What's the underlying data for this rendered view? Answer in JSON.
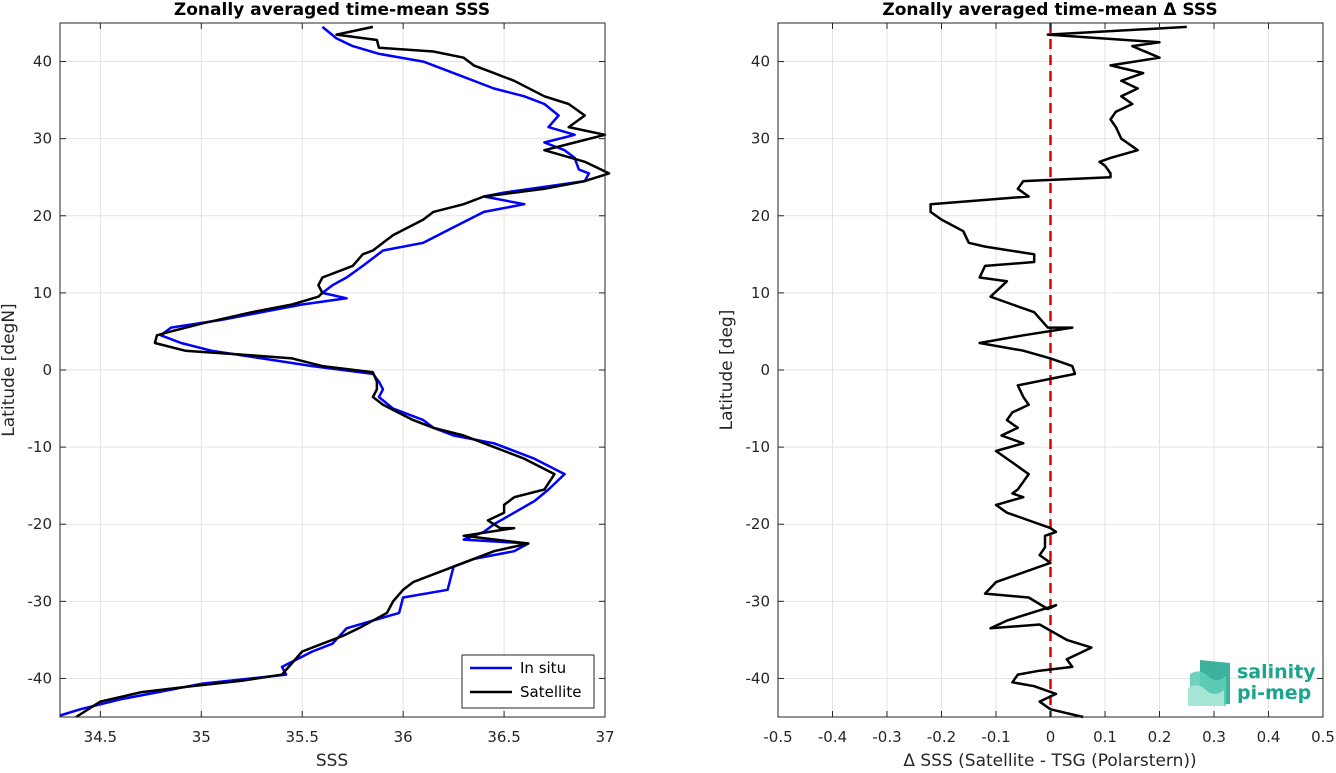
{
  "chart_data": [
    {
      "type": "line",
      "title": "Zonally averaged time-mean SSS",
      "xlabel": "SSS",
      "ylabel": "Latitude [degN]",
      "xlim": [
        34.3,
        37.0
      ],
      "ylim": [
        -45,
        45
      ],
      "xticks": [
        "34.5",
        "35",
        "35.5",
        "36",
        "36.5",
        "37"
      ],
      "xtick_values": [
        34.5,
        35,
        35.5,
        36,
        36.5,
        37
      ],
      "yticks": [
        "-40",
        "-30",
        "-20",
        "-10",
        "0",
        "10",
        "20",
        "30",
        "40"
      ],
      "ytick_values": [
        -40,
        -30,
        -20,
        -10,
        0,
        10,
        20,
        30,
        40
      ],
      "grid": true,
      "legend_position": "bottom-right",
      "series": [
        {
          "name": "In situ",
          "color": "#0000ff",
          "points": [
            [
              35.6,
              44.5
            ],
            [
              35.67,
              43.0
            ],
            [
              35.75,
              42.0
            ],
            [
              35.88,
              41.0
            ],
            [
              36.1,
              40.0
            ],
            [
              36.25,
              38.5
            ],
            [
              36.45,
              36.5
            ],
            [
              36.6,
              35.5
            ],
            [
              36.7,
              34.5
            ],
            [
              36.77,
              33.0
            ],
            [
              36.72,
              31.5
            ],
            [
              36.85,
              30.5
            ],
            [
              36.7,
              29.5
            ],
            [
              36.8,
              28.5
            ],
            [
              36.85,
              27.5
            ],
            [
              36.87,
              26.0
            ],
            [
              36.92,
              25.5
            ],
            [
              36.9,
              24.5
            ],
            [
              36.5,
              23.0
            ],
            [
              36.4,
              22.5
            ],
            [
              36.6,
              21.5
            ],
            [
              36.4,
              20.5
            ],
            [
              36.25,
              18.5
            ],
            [
              36.1,
              16.5
            ],
            [
              35.9,
              15.5
            ],
            [
              35.85,
              14.5
            ],
            [
              35.8,
              13.5
            ],
            [
              35.72,
              12.0
            ],
            [
              35.65,
              11.0
            ],
            [
              35.6,
              10.0
            ],
            [
              35.72,
              9.3
            ],
            [
              35.5,
              8.5
            ],
            [
              35.3,
              7.5
            ],
            [
              35.1,
              6.5
            ],
            [
              34.85,
              5.5
            ],
            [
              34.8,
              4.5
            ],
            [
              34.9,
              3.5
            ],
            [
              35.05,
              2.5
            ],
            [
              35.3,
              1.5
            ],
            [
              35.55,
              0.5
            ],
            [
              35.85,
              -0.5
            ],
            [
              35.88,
              -1.5
            ],
            [
              35.9,
              -2.5
            ],
            [
              35.88,
              -3.5
            ],
            [
              35.95,
              -5.0
            ],
            [
              36.1,
              -6.5
            ],
            [
              36.15,
              -7.5
            ],
            [
              36.25,
              -8.5
            ],
            [
              36.45,
              -9.5
            ],
            [
              36.65,
              -11.5
            ],
            [
              36.8,
              -13.5
            ],
            [
              36.72,
              -15.5
            ],
            [
              36.65,
              -17.0
            ],
            [
              36.55,
              -18.5
            ],
            [
              36.45,
              -20.0
            ],
            [
              36.4,
              -21.0
            ],
            [
              36.3,
              -22.0
            ],
            [
              36.62,
              -22.5
            ],
            [
              36.55,
              -23.5
            ],
            [
              36.35,
              -24.5
            ],
            [
              36.25,
              -25.5
            ],
            [
              36.22,
              -28.5
            ],
            [
              36.0,
              -29.5
            ],
            [
              35.98,
              -31.5
            ],
            [
              35.85,
              -32.5
            ],
            [
              35.72,
              -33.5
            ],
            [
              35.65,
              -35.5
            ],
            [
              35.55,
              -36.5
            ],
            [
              35.4,
              -38.5
            ],
            [
              35.42,
              -39.5
            ],
            [
              35.0,
              -40.7
            ],
            [
              34.8,
              -41.7
            ],
            [
              34.6,
              -42.7
            ],
            [
              34.4,
              -44.0
            ],
            [
              34.3,
              -44.8
            ]
          ]
        },
        {
          "name": "Satellite",
          "color": "#000000",
          "points": [
            [
              35.85,
              44.5
            ],
            [
              35.67,
              43.5
            ],
            [
              35.87,
              42.8
            ],
            [
              35.88,
              41.8
            ],
            [
              36.15,
              41.3
            ],
            [
              36.3,
              40.5
            ],
            [
              36.35,
              39.5
            ],
            [
              36.45,
              38.5
            ],
            [
              36.5,
              38.0
            ],
            [
              36.55,
              37.5
            ],
            [
              36.7,
              35.5
            ],
            [
              36.82,
              34.5
            ],
            [
              36.9,
              33.0
            ],
            [
              36.82,
              31.5
            ],
            [
              37.0,
              30.5
            ],
            [
              36.85,
              29.5
            ],
            [
              36.7,
              28.5
            ],
            [
              36.9,
              27.0
            ],
            [
              36.98,
              26.0
            ],
            [
              37.02,
              25.5
            ],
            [
              36.9,
              24.5
            ],
            [
              36.7,
              23.5
            ],
            [
              36.4,
              22.5
            ],
            [
              36.3,
              21.5
            ],
            [
              36.15,
              20.5
            ],
            [
              36.1,
              19.5
            ],
            [
              35.95,
              17.5
            ],
            [
              35.9,
              16.5
            ],
            [
              35.85,
              15.5
            ],
            [
              35.8,
              15.0
            ],
            [
              35.75,
              13.5
            ],
            [
              35.6,
              12.0
            ],
            [
              35.58,
              11.0
            ],
            [
              35.6,
              10.0
            ],
            [
              35.58,
              9.5
            ],
            [
              35.45,
              8.5
            ],
            [
              35.25,
              7.5
            ],
            [
              35.0,
              6.0
            ],
            [
              34.85,
              5.0
            ],
            [
              34.78,
              4.5
            ],
            [
              34.77,
              3.5
            ],
            [
              34.92,
              2.5
            ],
            [
              35.2,
              2.0
            ],
            [
              35.45,
              1.5
            ],
            [
              35.6,
              0.5
            ],
            [
              35.85,
              -0.3
            ],
            [
              35.87,
              -1.5
            ],
            [
              35.87,
              -2.5
            ],
            [
              35.85,
              -3.5
            ],
            [
              35.9,
              -4.5
            ],
            [
              36.05,
              -6.5
            ],
            [
              36.15,
              -7.5
            ],
            [
              36.3,
              -8.5
            ],
            [
              36.45,
              -10.0
            ],
            [
              36.6,
              -11.5
            ],
            [
              36.75,
              -13.5
            ],
            [
              36.7,
              -15.5
            ],
            [
              36.55,
              -16.5
            ],
            [
              36.5,
              -17.5
            ],
            [
              36.5,
              -18.5
            ],
            [
              36.42,
              -19.5
            ],
            [
              36.48,
              -20.5
            ],
            [
              36.55,
              -20.5
            ],
            [
              36.3,
              -21.5
            ],
            [
              36.62,
              -22.5
            ],
            [
              36.45,
              -23.5
            ],
            [
              36.3,
              -25.0
            ],
            [
              36.15,
              -26.5
            ],
            [
              36.05,
              -27.5
            ],
            [
              36.0,
              -28.5
            ],
            [
              35.95,
              -30.0
            ],
            [
              35.92,
              -31.5
            ],
            [
              35.78,
              -33.5
            ],
            [
              35.7,
              -34.5
            ],
            [
              35.6,
              -35.5
            ],
            [
              35.5,
              -36.5
            ],
            [
              35.45,
              -38.0
            ],
            [
              35.4,
              -39.5
            ],
            [
              35.2,
              -40.3
            ],
            [
              34.95,
              -41.0
            ],
            [
              34.7,
              -41.8
            ],
            [
              34.5,
              -43.0
            ],
            [
              34.38,
              -45.0
            ]
          ]
        }
      ]
    },
    {
      "type": "line",
      "title": "Zonally averaged time-mean Δ SSS",
      "xlabel": "Δ SSS (Satellite - TSG (Polarstern))",
      "ylabel": "Latitude [deg]",
      "xlim": [
        -0.5,
        0.5
      ],
      "ylim": [
        -45,
        45
      ],
      "xticks": [
        "-0.5",
        "-0.4",
        "-0.3",
        "-0.2",
        "-0.1",
        "0",
        "0.1",
        "0.2",
        "0.3",
        "0.4",
        "0.5"
      ],
      "xtick_values": [
        -0.5,
        -0.4,
        -0.3,
        -0.2,
        -0.1,
        0,
        0.1,
        0.2,
        0.3,
        0.4,
        0.5
      ],
      "yticks": [
        "-40",
        "-30",
        "-20",
        "-10",
        "0",
        "10",
        "20",
        "30",
        "40"
      ],
      "ytick_values": [
        -40,
        -30,
        -20,
        -10,
        0,
        10,
        20,
        30,
        40
      ],
      "grid": true,
      "reference_line": {
        "x": 0,
        "color": "#dd0000",
        "style": "dashed"
      },
      "series": [
        {
          "color": "#000000",
          "points": [
            [
              0.25,
              44.5
            ],
            [
              -0.005,
              43.5
            ],
            [
              0.2,
              42.5
            ],
            [
              0.15,
              42.0
            ],
            [
              0.2,
              40.5
            ],
            [
              0.11,
              39.5
            ],
            [
              0.17,
              38.5
            ],
            [
              0.13,
              37.5
            ],
            [
              0.16,
              36.5
            ],
            [
              0.13,
              35.5
            ],
            [
              0.15,
              34.5
            ],
            [
              0.12,
              33.5
            ],
            [
              0.11,
              32.5
            ],
            [
              0.12,
              31.5
            ],
            [
              0.13,
              30.0
            ],
            [
              0.14,
              29.5
            ],
            [
              0.16,
              28.5
            ],
            [
              0.11,
              27.5
            ],
            [
              0.09,
              27.0
            ],
            [
              0.1,
              26.5
            ],
            [
              0.11,
              25.5
            ],
            [
              0.11,
              25.0
            ],
            [
              -0.05,
              24.5
            ],
            [
              -0.06,
              23.5
            ],
            [
              -0.04,
              22.5
            ],
            [
              -0.22,
              21.5
            ],
            [
              -0.22,
              20.5
            ],
            [
              -0.2,
              19.5
            ],
            [
              -0.16,
              18.0
            ],
            [
              -0.15,
              16.5
            ],
            [
              -0.12,
              16.0
            ],
            [
              -0.03,
              15.0
            ],
            [
              -0.03,
              14.0
            ],
            [
              -0.12,
              13.5
            ],
            [
              -0.13,
              12.0
            ],
            [
              -0.08,
              11.5
            ],
            [
              -0.11,
              9.5
            ],
            [
              -0.07,
              8.5
            ],
            [
              -0.03,
              7.5
            ],
            [
              -0.005,
              5.5
            ],
            [
              0.04,
              5.5
            ],
            [
              -0.05,
              4.5
            ],
            [
              -0.13,
              3.5
            ],
            [
              -0.05,
              2.5
            ],
            [
              0.0,
              1.5
            ],
            [
              0.04,
              0.5
            ],
            [
              0.045,
              -0.5
            ],
            [
              -0.06,
              -2.0
            ],
            [
              -0.05,
              -3.5
            ],
            [
              -0.04,
              -4.5
            ],
            [
              -0.07,
              -5.5
            ],
            [
              -0.08,
              -6.5
            ],
            [
              -0.06,
              -7.5
            ],
            [
              -0.09,
              -8.5
            ],
            [
              -0.05,
              -9.5
            ],
            [
              -0.1,
              -10.5
            ],
            [
              -0.07,
              -12.0
            ],
            [
              -0.04,
              -13.5
            ],
            [
              -0.05,
              -14.5
            ],
            [
              -0.06,
              -15.5
            ],
            [
              -0.07,
              -16.0
            ],
            [
              -0.05,
              -16.5
            ],
            [
              -0.1,
              -17.5
            ],
            [
              -0.08,
              -18.5
            ],
            [
              -0.06,
              -19.0
            ],
            [
              0.0,
              -20.5
            ],
            [
              0.01,
              -21.0
            ],
            [
              -0.01,
              -21.5
            ],
            [
              -0.01,
              -23.0
            ],
            [
              -0.02,
              -24.0
            ],
            [
              0.0,
              -25.0
            ],
            [
              -0.1,
              -27.5
            ],
            [
              -0.12,
              -29.0
            ],
            [
              -0.04,
              -29.5
            ],
            [
              -0.005,
              -31.0
            ],
            [
              0.01,
              -30.5
            ],
            [
              -0.08,
              -32.5
            ],
            [
              -0.11,
              -33.5
            ],
            [
              -0.02,
              -33.0
            ],
            [
              0.03,
              -35.0
            ],
            [
              0.075,
              -36.0
            ],
            [
              0.03,
              -37.5
            ],
            [
              0.04,
              -38.5
            ],
            [
              -0.02,
              -39.0
            ],
            [
              -0.06,
              -39.5
            ],
            [
              -0.07,
              -40.5
            ],
            [
              -0.03,
              -41.0
            ],
            [
              0.01,
              -42.0
            ],
            [
              -0.02,
              -43.0
            ],
            [
              0.0,
              -44.0
            ],
            [
              0.06,
              -45.0
            ]
          ]
        }
      ]
    }
  ],
  "legend": {
    "items": [
      "In situ",
      "Satellite"
    ]
  },
  "logo": {
    "line1": "salinity",
    "line2": "pi-mep"
  },
  "colors": {
    "insitu": "#0000ff",
    "satellite": "#000000",
    "reference": "#dd0000",
    "logo": "#1aa58c"
  }
}
